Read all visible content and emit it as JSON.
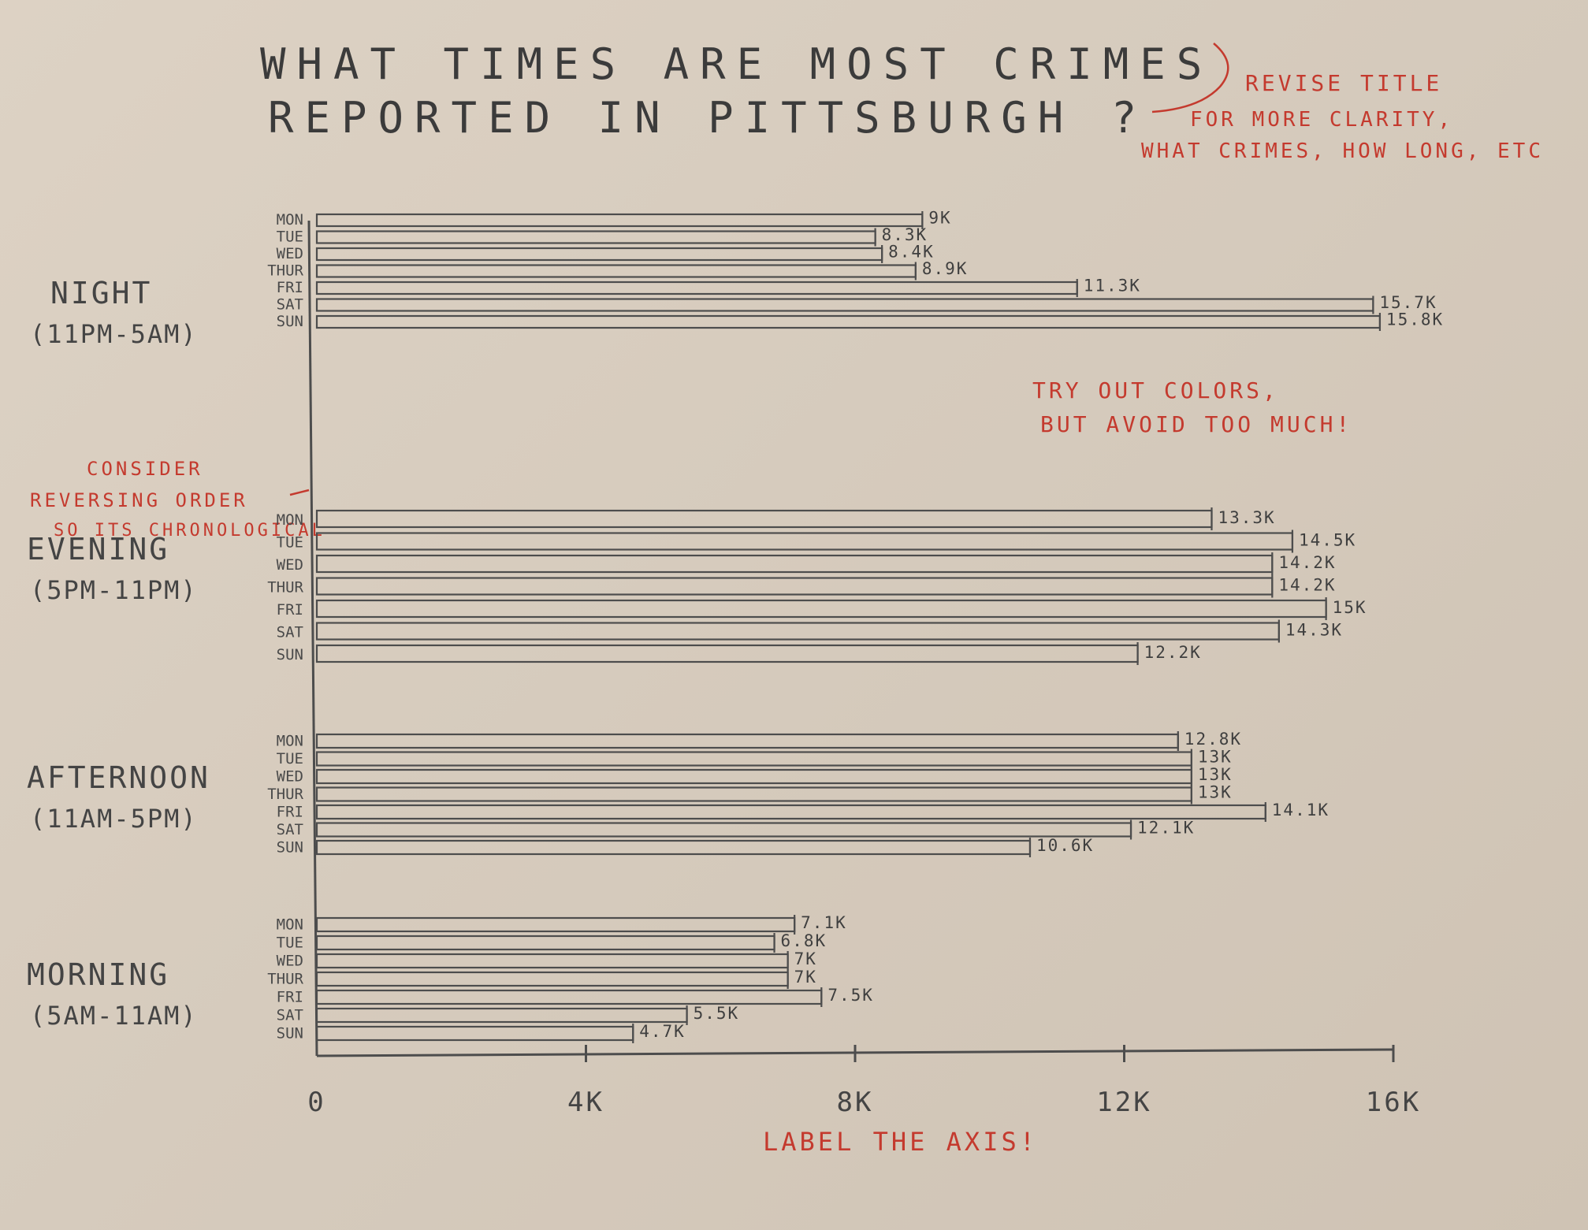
{
  "chart_data": {
    "type": "bar",
    "orientation": "horizontal",
    "title_lines": [
      "WHAT TIMES ARE MOST CRIMES",
      "REPORTED IN PITTSBURGH ?"
    ],
    "xlim": [
      0,
      16000
    ],
    "x_ticks": [
      "0",
      "4K",
      "8K",
      "12K",
      "16K"
    ],
    "groups": [
      {
        "name": "NIGHT",
        "range": "(11PM-5AM)",
        "bars": [
          {
            "day": "MON",
            "value": 9000,
            "label": "9K"
          },
          {
            "day": "TUE",
            "value": 8300,
            "label": "8.3K"
          },
          {
            "day": "WED",
            "value": 8400,
            "label": "8.4K"
          },
          {
            "day": "THUR",
            "value": 8900,
            "label": "8.9K"
          },
          {
            "day": "FRI",
            "value": 11300,
            "label": "11.3K"
          },
          {
            "day": "SAT",
            "value": 15700,
            "label": "15.7K"
          },
          {
            "day": "SUN",
            "value": 15800,
            "label": "15.8K"
          }
        ]
      },
      {
        "name": "EVENING",
        "range": "(5PM-11PM)",
        "bars": [
          {
            "day": "MON",
            "value": 13300,
            "label": "13.3K"
          },
          {
            "day": "TUE",
            "value": 14500,
            "label": "14.5K"
          },
          {
            "day": "WED",
            "value": 14200,
            "label": "14.2K"
          },
          {
            "day": "THUR",
            "value": 14200,
            "label": "14.2K"
          },
          {
            "day": "FRI",
            "value": 15000,
            "label": "15K"
          },
          {
            "day": "SAT",
            "value": 14300,
            "label": "14.3K"
          },
          {
            "day": "SUN",
            "value": 12200,
            "label": "12.2K"
          }
        ]
      },
      {
        "name": "AFTERNOON",
        "range": "(11AM-5PM)",
        "bars": [
          {
            "day": "MON",
            "value": 12800,
            "label": "12.8K"
          },
          {
            "day": "TUE",
            "value": 13000,
            "label": "13K"
          },
          {
            "day": "WED",
            "value": 13000,
            "label": "13K"
          },
          {
            "day": "THUR",
            "value": 13000,
            "label": "13K"
          },
          {
            "day": "FRI",
            "value": 14100,
            "label": "14.1K"
          },
          {
            "day": "SAT",
            "value": 12100,
            "label": "12.1K"
          },
          {
            "day": "SUN",
            "value": 10600,
            "label": "10.6K"
          }
        ]
      },
      {
        "name": "MORNING",
        "range": "(5AM-11AM)",
        "bars": [
          {
            "day": "MON",
            "value": 7100,
            "label": "7.1K"
          },
          {
            "day": "TUE",
            "value": 6800,
            "label": "6.8K"
          },
          {
            "day": "WED",
            "value": 7000,
            "label": "7K"
          },
          {
            "day": "THUR",
            "value": 7000,
            "label": "7K"
          },
          {
            "day": "FRI",
            "value": 7500,
            "label": "7.5K"
          },
          {
            "day": "SAT",
            "value": 5500,
            "label": "5.5K"
          },
          {
            "day": "SUN",
            "value": 4700,
            "label": "4.7K"
          }
        ]
      }
    ],
    "annotations": {
      "revise_title": [
        "REVISE TITLE",
        "FOR MORE CLARITY,",
        "WHAT CRIMES, HOW LONG, ETC"
      ],
      "colors": [
        "TRY OUT COLORS,",
        "BUT AVOID TOO MUCH!"
      ],
      "reverse_order": [
        "CONSIDER",
        "REVERSING ORDER",
        "SO ITS CHRONOLOGICAL"
      ],
      "axis": "LABEL THE AXIS!"
    },
    "colors": {
      "pencil": "#4d4d4d",
      "red_ink": "#c43a2e",
      "paper": "#d8cdbf"
    }
  }
}
